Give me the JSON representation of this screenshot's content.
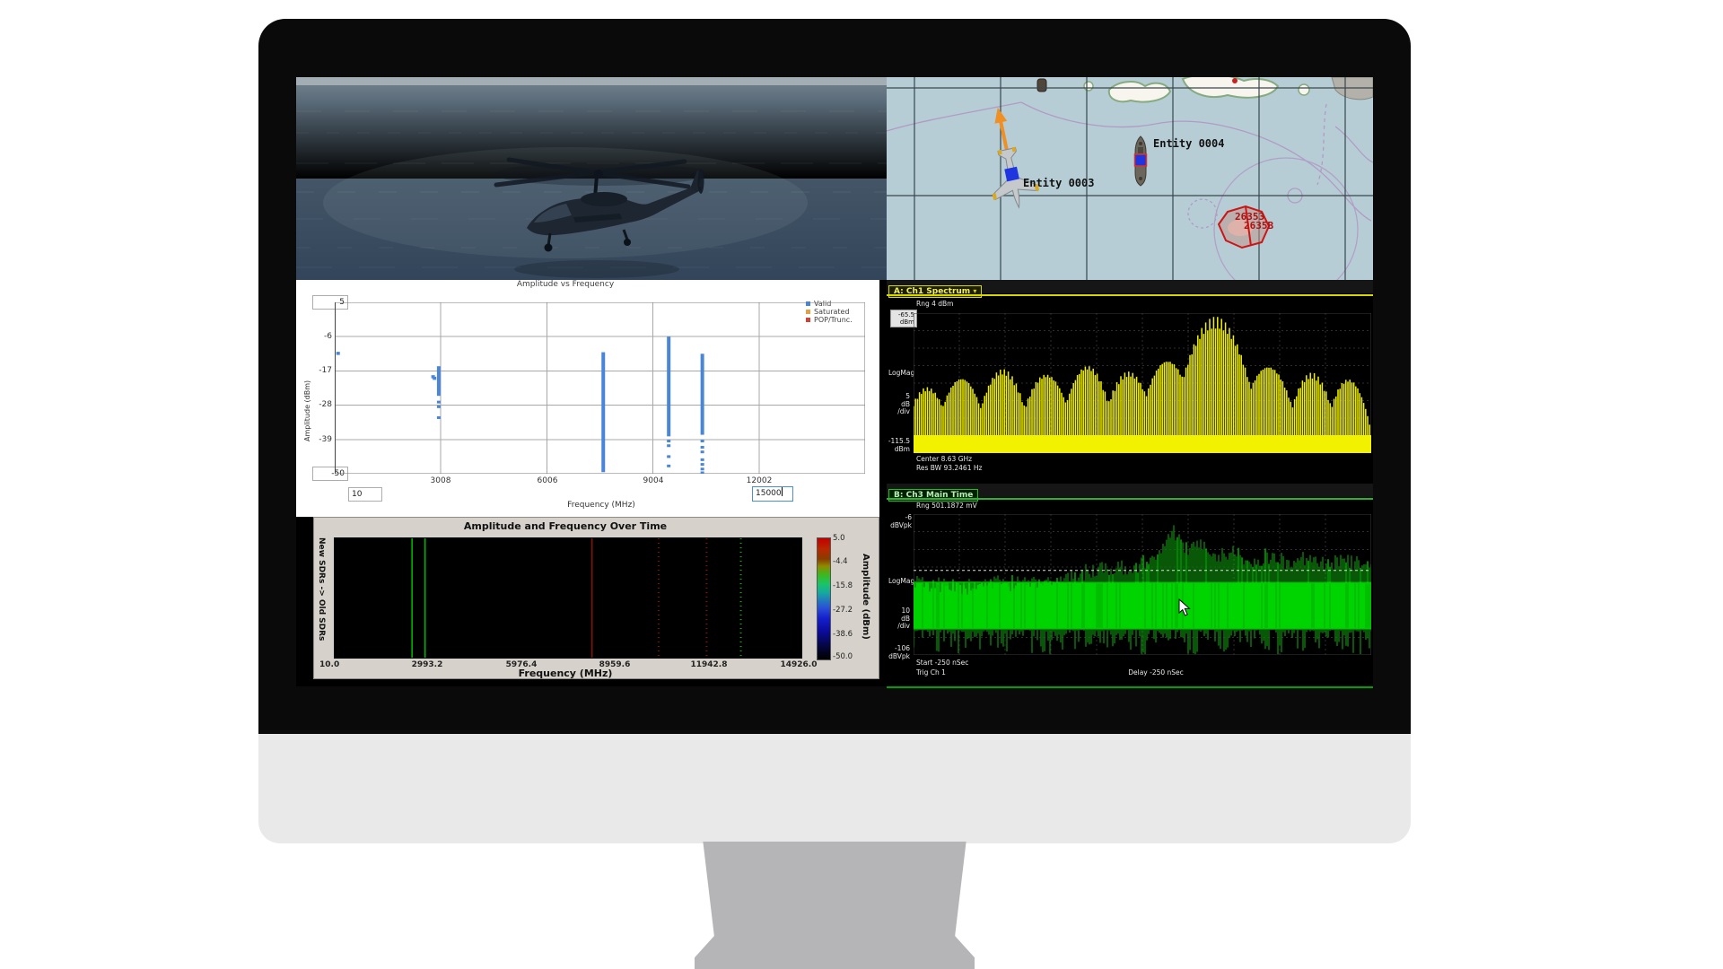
{
  "colors": {
    "accent_yellow": "#d8d800",
    "accent_green": "#22bb22",
    "valid_blue": "#4a86d8",
    "saturated_orange": "#e2a144",
    "pop_red": "#cc4433",
    "map_sea": "#b6cdd6",
    "spectrum_yellow": "#f2f200",
    "time_green": "#00d400"
  },
  "map": {
    "entity3": "Entity 0003",
    "entity4": "Entity 0004",
    "zone1": "26353",
    "zone2": "2635B"
  },
  "scatter": {
    "title": "Amplitude vs Frequency",
    "legend": {
      "valid": "Valid",
      "saturated": "Saturated",
      "pop": "POP/Trunc."
    },
    "ylabel": "Amplitude (dBm)",
    "xlabel": "Frequency (MHz)",
    "ymax": "5",
    "ymin": "-50",
    "xmin": "10",
    "xmax": "15000",
    "yticks": [
      "-6",
      "-17",
      "-28",
      "-39"
    ],
    "xticks": [
      "3008",
      "6006",
      "9004",
      "12002"
    ]
  },
  "spectrogram": {
    "title": "Amplitude and Frequency Over Time",
    "ylabel": "New SDRs -> Old SDRs",
    "xlabel": "Frequency (MHz)",
    "xticks": [
      "10.0",
      "2993.2",
      "5976.4",
      "8959.6",
      "11942.8",
      "14926.0"
    ],
    "colorbar_ticks": [
      "5.0",
      "-4.4",
      "-15.8",
      "-27.2",
      "-38.6",
      "-50.0"
    ],
    "colorbar_label": "Amplitude (dBm)"
  },
  "panelA": {
    "tab": "A: Ch1 Spectrum",
    "tab_caret": "▾",
    "rng": "Rng 4 dBm",
    "ref_top_val": "-65.5",
    "ref_top_unit": "dBm",
    "logmag": "LogMag",
    "scale_val": "5",
    "scale_db": "dB",
    "scale_div": "/div",
    "ref_bot_val": "-115.5",
    "ref_bot_unit": "dBm",
    "center": "Center 8.63 GHz",
    "resbw": "Res BW 93.2461  Hz"
  },
  "panelB": {
    "tab": "B: Ch3 Main Time",
    "rng": "Rng 501.1872 mV",
    "ref_top_val": "-6",
    "ref_top_unit": "dBVpk",
    "logmag": "LogMag",
    "scale_val": "10",
    "scale_db": "dB",
    "scale_div": "/div",
    "ref_bot_val": "-106",
    "ref_bot_unit": "dBVpk",
    "start": "Start -250 nSec",
    "trig": "Trig Ch 1",
    "delay": "Delay -250 nSec"
  },
  "chart_data": [
    {
      "type": "scatter",
      "title": "Amplitude vs Frequency",
      "xlabel": "Frequency (MHz)",
      "ylabel": "Amplitude (dBm)",
      "xlim": [
        10,
        15000
      ],
      "ylim": [
        -50,
        5
      ],
      "xticks": [
        10,
        3008,
        6006,
        9004,
        12002,
        15000
      ],
      "yticks": [
        5,
        -6,
        -17,
        -28,
        -39,
        -50
      ],
      "legend": [
        "Valid",
        "Saturated",
        "POP/Trunc."
      ],
      "legend_position": "top-right",
      "grid": true,
      "series": [
        {
          "name": "Valid",
          "color": "#4a86d8",
          "columns": [
            {
              "x": 2950,
              "span": [
                -15.5,
                -25
              ],
              "points": [
                -27,
                -28.5,
                -32
              ]
            },
            {
              "x": 7600,
              "span": [
                -11,
                -49.5
              ],
              "points": []
            },
            {
              "x": 9450,
              "span": [
                -6,
                -38
              ],
              "points": [
                -39.5,
                -41,
                -44.5,
                -47.5
              ]
            },
            {
              "x": 10400,
              "span": [
                -11.5,
                -37.5
              ],
              "points": [
                -39.5,
                -41.5,
                -43,
                -45.5,
                -47,
                -48.5,
                -49.7
              ]
            }
          ],
          "points": [
            {
              "x": 105,
              "y": -11.3
            },
            {
              "x": 2790,
              "y": -18.8
            },
            {
              "x": 2830,
              "y": -19.3
            }
          ]
        }
      ]
    },
    {
      "type": "heatmap",
      "title": "Amplitude and Frequency Over Time",
      "xlabel": "Frequency (MHz)",
      "ylabel": "New SDRs -> Old SDRs",
      "xlim": [
        10,
        14926
      ],
      "xticks": [
        10.0,
        2993.2,
        5976.4,
        8959.6,
        11942.8,
        14926.0
      ],
      "colorbar": {
        "label": "Amplitude (dBm)",
        "ticks": [
          5.0,
          -4.4,
          -15.8,
          -27.2,
          -38.6,
          -50.0
        ]
      },
      "signals": [
        {
          "x": 2500,
          "color": "#00b400",
          "style": "solid"
        },
        {
          "x": 2915,
          "color": "#00b400",
          "style": "solid"
        },
        {
          "x": 8230,
          "color": "#801800",
          "style": "solid"
        },
        {
          "x": 10350,
          "color": "#801800",
          "style": "dotted"
        },
        {
          "x": 11880,
          "color": "#801800",
          "style": "dotted"
        },
        {
          "x": 12970,
          "color": "#00b400",
          "style": "dotted"
        }
      ]
    },
    {
      "type": "line",
      "title": "A: Ch1 Spectrum",
      "ylabel": "LogMag",
      "range": "4 dBm",
      "ref_level_dbm": -65.5,
      "bottom_dbm": -115.5,
      "scale": "5 dB/div",
      "center": "8.63 GHz",
      "res_bw": "93.2461 Hz",
      "color": "#f2f200",
      "base_height": 0.13,
      "lobes": [
        [
          0.03,
          0.05,
          0.4
        ],
        [
          0.105,
          0.055,
          0.48
        ],
        [
          0.195,
          0.06,
          0.55
        ],
        [
          0.29,
          0.06,
          0.51
        ],
        [
          0.38,
          0.06,
          0.58
        ],
        [
          0.47,
          0.06,
          0.53
        ],
        [
          0.555,
          0.065,
          0.63
        ],
        [
          0.66,
          0.095,
          0.985
        ],
        [
          0.775,
          0.065,
          0.58
        ],
        [
          0.87,
          0.055,
          0.52
        ],
        [
          0.95,
          0.05,
          0.47
        ]
      ]
    },
    {
      "type": "line",
      "title": "B: Ch3 Main Time",
      "ylabel": "LogMag",
      "range": "501.1872 mV",
      "ref_level": "-6 dBVpk",
      "bottom": "-106 dBVpk",
      "scale": "10 dB/div",
      "trigger": "Trig Ch 1",
      "start": "-250 nSec",
      "delay": "-250 nSec",
      "color": "#00d400",
      "band": [
        0.18,
        0.52
      ],
      "envelope": [
        [
          0.0,
          0.52
        ],
        [
          0.05,
          0.5
        ],
        [
          0.1,
          0.47
        ],
        [
          0.15,
          0.52
        ],
        [
          0.2,
          0.5
        ],
        [
          0.25,
          0.54
        ],
        [
          0.3,
          0.52
        ],
        [
          0.35,
          0.57
        ],
        [
          0.4,
          0.6
        ],
        [
          0.45,
          0.62
        ],
        [
          0.5,
          0.65
        ],
        [
          0.54,
          0.7
        ],
        [
          0.57,
          0.88
        ],
        [
          0.6,
          0.73
        ],
        [
          0.63,
          0.77
        ],
        [
          0.66,
          0.69
        ],
        [
          0.7,
          0.73
        ],
        [
          0.74,
          0.67
        ],
        [
          0.78,
          0.71
        ],
        [
          0.82,
          0.65
        ],
        [
          0.86,
          0.69
        ],
        [
          0.9,
          0.63
        ],
        [
          0.94,
          0.67
        ],
        [
          1.0,
          0.64
        ]
      ]
    }
  ]
}
